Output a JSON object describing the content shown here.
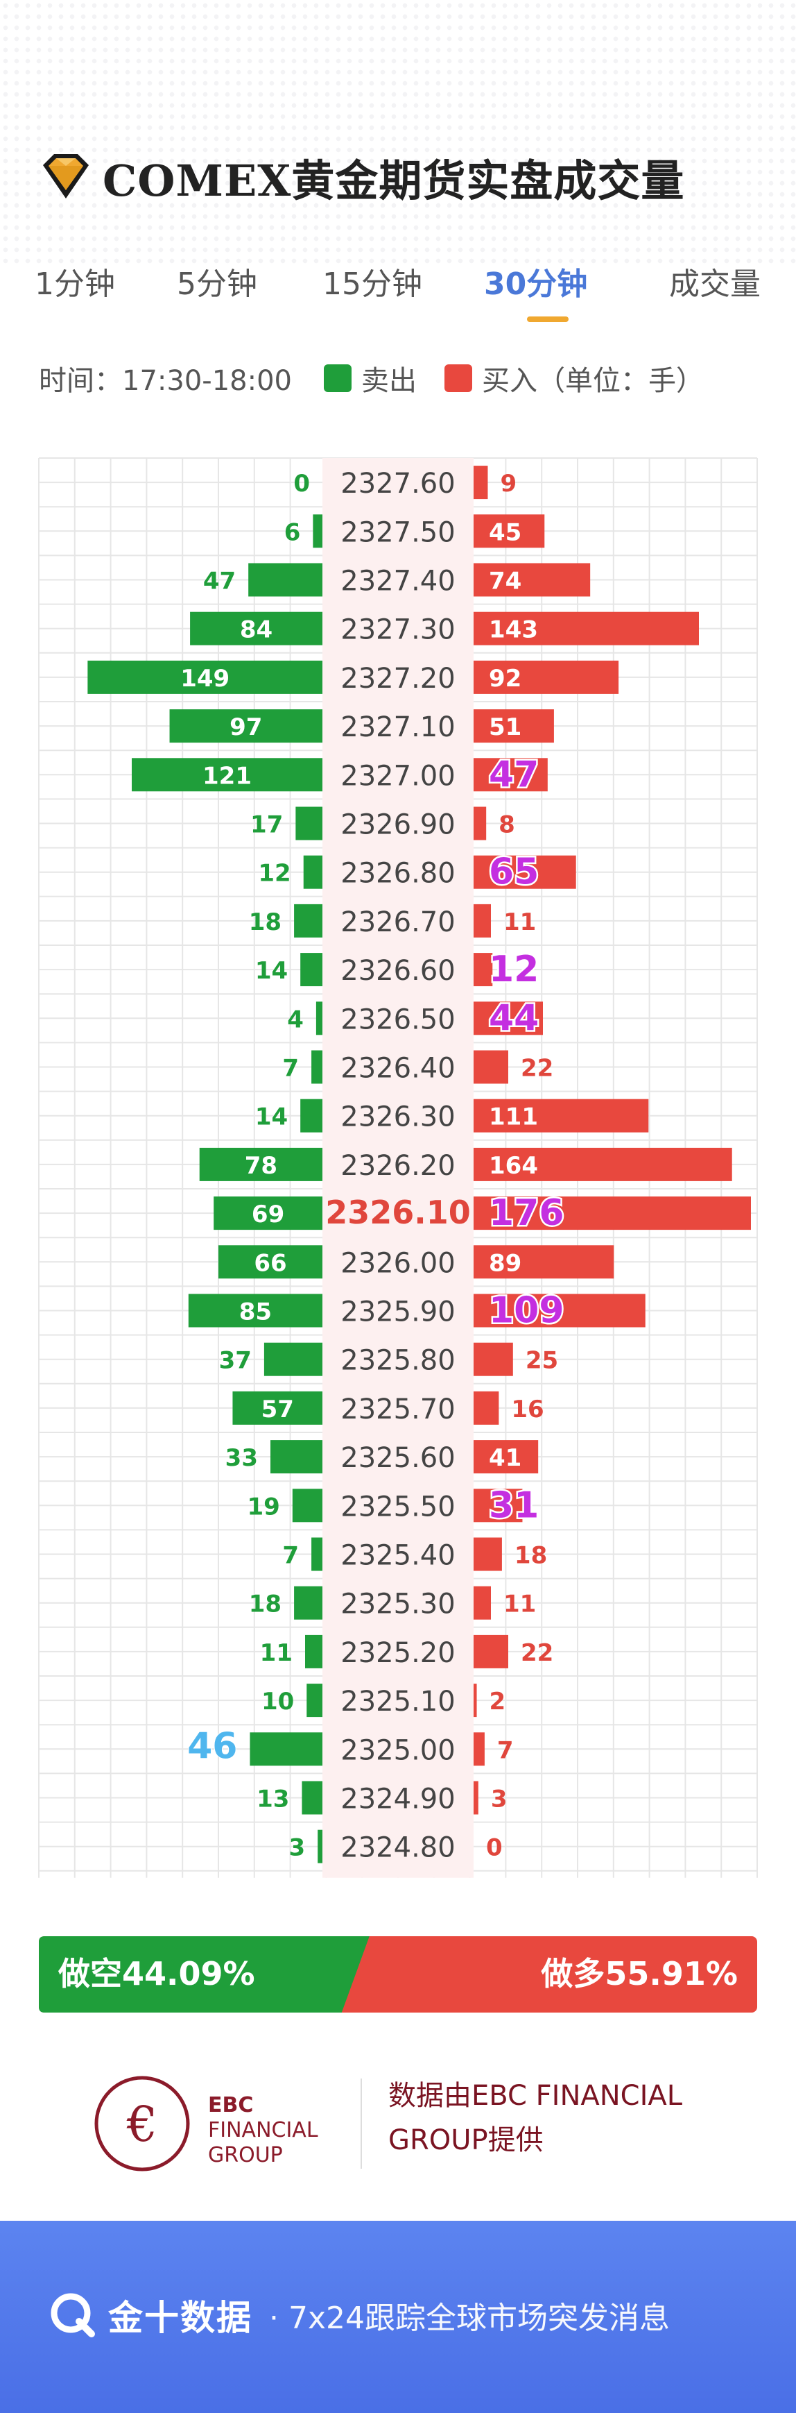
{
  "header": {
    "title": "COMEX黄金期货实盘成交量",
    "logo_icon": "diamond-logo-icon",
    "accent_color": "#f0a830"
  },
  "tabs": [
    {
      "label": "1分钟",
      "active": false
    },
    {
      "label": "5分钟",
      "active": false
    },
    {
      "label": "15分钟",
      "active": false
    },
    {
      "label": "30分钟",
      "active": true
    },
    {
      "label": "成交量",
      "active": false
    }
  ],
  "legend": {
    "time_label": "时间：17:30-18:00",
    "sell_label": "卖出",
    "buy_label": "买入（单位：手）",
    "sell_color": "#1f9e3a",
    "buy_color": "#e8483e"
  },
  "chart_data": {
    "type": "bar",
    "orientation": "horizontal-butterfly",
    "categories": [
      "2327.60",
      "2327.50",
      "2327.40",
      "2327.30",
      "2327.20",
      "2327.10",
      "2327.00",
      "2326.90",
      "2326.80",
      "2326.70",
      "2326.60",
      "2326.50",
      "2326.40",
      "2326.30",
      "2326.20",
      "2326.10",
      "2326.00",
      "2325.90",
      "2325.80",
      "2325.70",
      "2325.60",
      "2325.50",
      "2325.40",
      "2325.30",
      "2325.20",
      "2325.10",
      "2325.00",
      "2324.90",
      "2324.80"
    ],
    "series": [
      {
        "name": "卖出",
        "color": "#1f9e3a",
        "values": [
          0,
          6,
          47,
          84,
          149,
          97,
          121,
          17,
          12,
          18,
          14,
          4,
          7,
          14,
          78,
          69,
          66,
          85,
          37,
          57,
          33,
          19,
          7,
          18,
          11,
          10,
          46,
          13,
          3
        ]
      },
      {
        "name": "买入",
        "color": "#e8483e",
        "values": [
          9,
          45,
          74,
          143,
          92,
          51,
          47,
          8,
          65,
          11,
          12,
          44,
          22,
          111,
          164,
          176,
          89,
          109,
          25,
          16,
          41,
          31,
          18,
          11,
          22,
          2,
          7,
          3,
          0
        ]
      }
    ],
    "highlight_price": "2326.10",
    "highlight_buy_indices": [
      6,
      8,
      10,
      11,
      15,
      17,
      21
    ],
    "highlight_sell_indices": [
      26
    ],
    "xlim": [
      0,
      176
    ],
    "grid": true
  },
  "split_bar": {
    "short_label": "做空44.09%",
    "long_label": "做多55.91%",
    "short_pct": 44.09,
    "long_pct": 55.91
  },
  "provider": {
    "logo_line1": "EBC",
    "logo_line2": "FINANCIAL",
    "logo_line3": "GROUP",
    "text_line1": "数据由EBC FINANCIAL",
    "text_line2": "GROUP提供"
  },
  "footer": {
    "brand": "金十数据",
    "slogan": "· 7x24跟踪全球市场突发消息",
    "brand_icon": "jin10-logo-icon"
  }
}
